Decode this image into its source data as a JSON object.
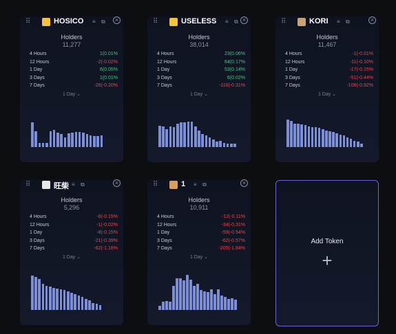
{
  "holders_label": "Holders",
  "add_token": {
    "label": "Add Token"
  },
  "icons": {
    "menu": "≡",
    "copy": "⧉",
    "close": "⊗",
    "plus": "+",
    "drag": "⠿"
  },
  "cards": [
    {
      "name": "HOSICO",
      "holders": "11,277",
      "icon_color": "#f5c33b",
      "stats": [
        {
          "label": "4 Hours",
          "value": "1(0.01%",
          "dir": "pos"
        },
        {
          "label": "12 Hours",
          "value": "-2(-0.02%",
          "dir": "neg"
        },
        {
          "label": "1 Day",
          "value": "6(0.05%",
          "dir": "pos"
        },
        {
          "label": "3 Days",
          "value": "1(0.01%",
          "dir": "pos"
        },
        {
          "label": "7 Days",
          "value": "-26(-0.20%",
          "dir": "neg"
        }
      ],
      "period": "1 Day ⌄",
      "chart": [
        0.82,
        0.53,
        0.13,
        0.13,
        0.13,
        0.53,
        0.56,
        0.48,
        0.43,
        0.32,
        0.45,
        0.48,
        0.5,
        0.5,
        0.48,
        0.43,
        0.38,
        0.36,
        0.36,
        0.39
      ]
    },
    {
      "name": "USELESS",
      "holders": "38,014",
      "icon_color": "#f5c33b",
      "stats": [
        {
          "label": "4 Hours",
          "value": "23(0.06%",
          "dir": "pos"
        },
        {
          "label": "12 Hours",
          "value": "64(0.17%",
          "dir": "pos"
        },
        {
          "label": "1 Day",
          "value": "53(0.14%",
          "dir": "pos"
        },
        {
          "label": "3 Days",
          "value": "6(0.02%",
          "dir": "pos"
        },
        {
          "label": "7 Days",
          "value": "-118(-0.31%",
          "dir": "neg"
        }
      ],
      "period": "1 Day ⌄",
      "chart": [
        0.78,
        0.74,
        0.66,
        0.76,
        0.72,
        0.86,
        0.9,
        0.9,
        0.92,
        0.92,
        0.74,
        0.59,
        0.48,
        0.43,
        0.34,
        0.28,
        0.2,
        0.22,
        0.15,
        0.13,
        0.13,
        0.13
      ]
    },
    {
      "name": "KORI",
      "holders": "11,467",
      "icon_color": "#c9a27a",
      "stats": [
        {
          "label": "4 Hours",
          "value": "-1(-0.01%",
          "dir": "neg"
        },
        {
          "label": "12 Hours",
          "value": "-11(-0.10%",
          "dir": "neg"
        },
        {
          "label": "1 Day",
          "value": "-17(-0.15%",
          "dir": "neg"
        },
        {
          "label": "3 Days",
          "value": "-51(-0.44%",
          "dir": "neg"
        },
        {
          "label": "7 Days",
          "value": "-106(-0.92%",
          "dir": "neg"
        }
      ],
      "period": "1 Day ⌄",
      "chart": [
        0.88,
        0.82,
        0.74,
        0.74,
        0.72,
        0.69,
        0.66,
        0.63,
        0.63,
        0.61,
        0.57,
        0.53,
        0.51,
        0.48,
        0.44,
        0.4,
        0.36,
        0.3,
        0.26,
        0.2,
        0.17,
        0.1
      ]
    },
    {
      "name": "旺柴",
      "holders": "5,296",
      "icon_color": "#e8e8e8",
      "stats": [
        {
          "label": "4 Hours",
          "value": "-8(-0.15%",
          "dir": "neg"
        },
        {
          "label": "12 Hours",
          "value": "-1(-0.02%",
          "dir": "neg"
        },
        {
          "label": "1 Day",
          "value": "-8(-0.15%",
          "dir": "neg"
        },
        {
          "label": "3 Days",
          "value": "-21(-0.39%",
          "dir": "neg"
        },
        {
          "label": "7 Days",
          "value": "-62(-1.16%",
          "dir": "neg"
        }
      ],
      "period": "1 Day ⌄",
      "chart": [
        0.96,
        0.92,
        0.86,
        0.74,
        0.68,
        0.66,
        0.62,
        0.6,
        0.58,
        0.55,
        0.52,
        0.48,
        0.44,
        0.4,
        0.36,
        0.3,
        0.26,
        0.2,
        0.18,
        0.13
      ]
    },
    {
      "name": "1",
      "holders": "10,911",
      "icon_color": "#d9a05b",
      "stats": [
        {
          "label": "4 Hours",
          "value": "-12(-0.11%",
          "dir": "neg"
        },
        {
          "label": "12 Hours",
          "value": "-34(-0.31%",
          "dir": "neg"
        },
        {
          "label": "1 Day",
          "value": "-59(-0.54%",
          "dir": "neg"
        },
        {
          "label": "3 Days",
          "value": "-62(-0.57%",
          "dir": "neg"
        },
        {
          "label": "7 Days",
          "value": "-205(-1.84%",
          "dir": "neg"
        }
      ],
      "period": "1 Day ⌄",
      "chart": [
        0.1,
        0.2,
        0.22,
        0.2,
        0.6,
        0.8,
        0.8,
        0.74,
        0.88,
        0.76,
        0.6,
        0.66,
        0.5,
        0.46,
        0.44,
        0.52,
        0.4,
        0.52,
        0.36,
        0.33,
        0.27,
        0.3,
        0.26
      ]
    }
  ]
}
